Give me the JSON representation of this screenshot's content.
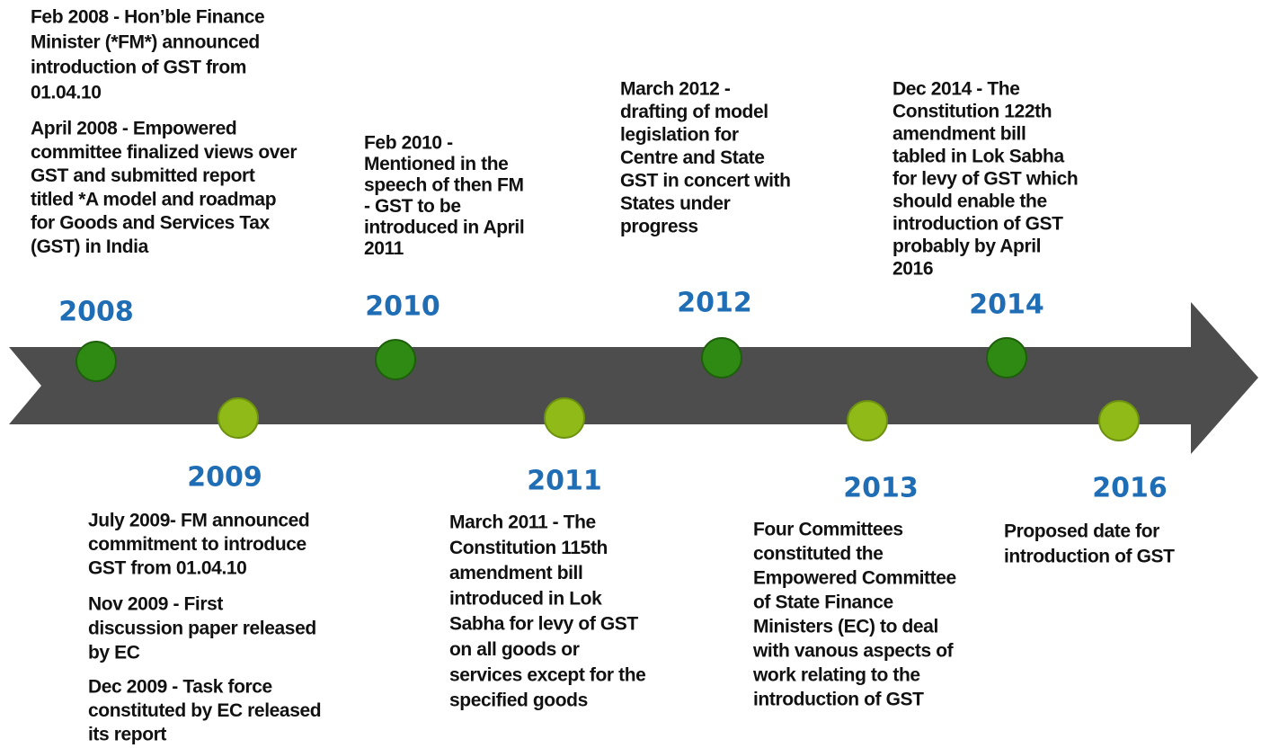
{
  "timeline": {
    "years": [
      {
        "label": "2008",
        "row": "top"
      },
      {
        "label": "2009",
        "row": "bottom"
      },
      {
        "label": "2010",
        "row": "top"
      },
      {
        "label": "2011",
        "row": "bottom"
      },
      {
        "label": "2012",
        "row": "top"
      },
      {
        "label": "2013",
        "row": "bottom"
      },
      {
        "label": "2014",
        "row": "top"
      },
      {
        "label": "2016",
        "row": "bottom"
      }
    ],
    "events": [
      {
        "lines": [
          "Feb 2008 - Hon’ble Finance",
          "Minister (*FM*) announced",
          "introduction of GST from",
          "01.04.10"
        ]
      },
      {
        "lines": [
          "April 2008 - Empowered",
          "committee finalized views over",
          "GST and submitted report",
          "titled *A model and roadmap",
          "for Goods and Services Tax",
          "(GST) in India"
        ]
      },
      {
        "lines": [
          "Feb 2010 -",
          "Mentioned in the",
          "speech of then FM",
          "- GST to be",
          "introduced in April",
          "2011"
        ]
      },
      {
        "lines": [
          "March 2012 -",
          "drafting of model",
          "legislation for",
          "Centre and State",
          "GST in concert with",
          "States under",
          "progress"
        ]
      },
      {
        "lines": [
          "Dec 2014 - The",
          "Constitution 122th",
          "amendment bill",
          "tabled in Lok Sabha",
          "for levy of GST which",
          "should enable the",
          "introduction of GST",
          "probably by April",
          "2016"
        ]
      },
      {
        "lines": [
          "July 2009- FM announced",
          "commitment to introduce",
          "GST from 01.04.10"
        ]
      },
      {
        "lines": [
          "Nov 2009 - First",
          "discussion paper released",
          "by EC"
        ]
      },
      {
        "lines": [
          "Dec 2009 - Task force",
          "constituted by EC released",
          "its report"
        ]
      },
      {
        "lines": [
          "March 2011 - The",
          "Constitution 115th",
          "amendment bill",
          "introduced in Lok",
          "Sabha for levy of GST",
          "on all goods or",
          "services except for the",
          "specified goods"
        ]
      },
      {
        "lines": [
          "Four Committees",
          "constituted the",
          "Empowered Committee",
          "of State Finance",
          "Ministers (EC) to deal",
          "with vanous aspects of",
          "work relating to the",
          "introduction of GST"
        ]
      },
      {
        "lines": [
          "Proposed date for",
          "introduction of GST"
        ]
      }
    ]
  }
}
